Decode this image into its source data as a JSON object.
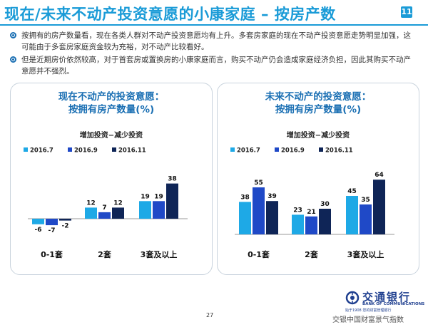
{
  "title": "现在/未来不动产投资意愿的小康家庭 – 按房产数",
  "title_badge": "11",
  "bullets": [
    "按拥有的房产数量看，现在各类人群对不动产投资意愿均有上升。多套房家庭的现在不动产投资意愿走势明显加强，这可能由于多套房家庭资金较为充裕，对不动产比较看好。",
    "但是近期房价依然较高，对于首套房或置换房的小康家庭而言，购买不动产仍会造成家庭经济负担，因此其购买不动产意愿并不强烈。"
  ],
  "colors": {
    "s1": "#1ea9e6",
    "s2": "#1f49c7",
    "s3": "#0f2557",
    "accent": "#1a9bd7"
  },
  "chart_data": [
    {
      "type": "bar",
      "title_line1": "现在不动产的投资意愿：",
      "title_line2": "按拥有房产数量(%)",
      "subtitle": "增加投资−减少投资",
      "categories": [
        "0-1套",
        "2套",
        "3套及以上"
      ],
      "series": [
        {
          "name": "2016.7",
          "values": [
            -6,
            12,
            19
          ]
        },
        {
          "name": "2016.9",
          "values": [
            -7,
            7,
            19
          ]
        },
        {
          "name": "2016.11",
          "values": [
            -2,
            12,
            38
          ]
        }
      ]
    },
    {
      "type": "bar",
      "title_line1": "未来不动产的投资意愿：",
      "title_line2": "按拥有房产数量(%)",
      "subtitle": "增加投资−减少投资",
      "categories": [
        "0-1套",
        "2套",
        "3套及以上"
      ],
      "series": [
        {
          "name": "2016.7",
          "values": [
            38,
            23,
            45
          ]
        },
        {
          "name": "2016.9",
          "values": [
            55,
            21,
            35
          ]
        },
        {
          "name": "2016.11",
          "values": [
            39,
            30,
            64
          ]
        }
      ]
    }
  ],
  "footer": {
    "logo_cn": "交通银行",
    "logo_en": "BANK OF COMMUNICATIONS",
    "logo_small": "始于1908  您的财富管理银行",
    "tagline": "交银中国财富景气指数",
    "page": "27"
  }
}
